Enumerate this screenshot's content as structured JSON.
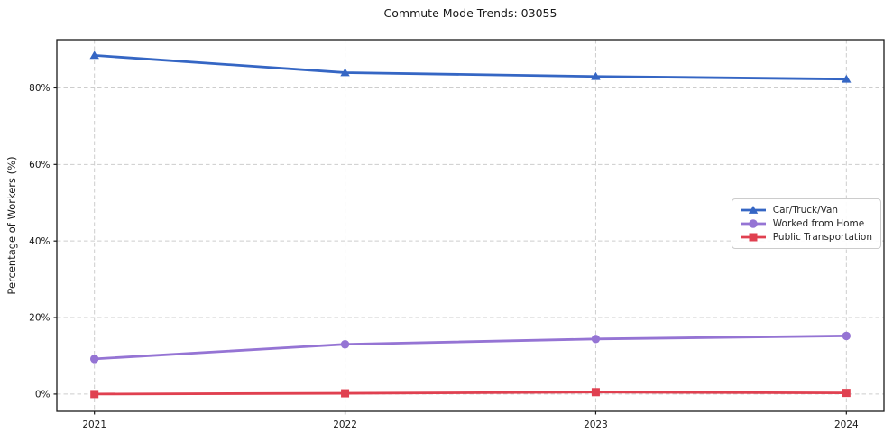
{
  "chart_data": {
    "type": "line",
    "title": "Commute Mode Trends: 03055",
    "xlabel": "",
    "ylabel": "Percentage of Workers (%)",
    "x": [
      2021,
      2022,
      2023,
      2024
    ],
    "x_tick_labels": [
      "2021",
      "2022",
      "2023",
      "2024"
    ],
    "series": [
      {
        "name": "Car/Truck/Van",
        "color": "#3566c4",
        "marker": "triangle",
        "values": [
          88.5,
          84.0,
          83.0,
          82.3
        ]
      },
      {
        "name": "Worked from Home",
        "color": "#9574d4",
        "marker": "circle",
        "values": [
          9.2,
          13.0,
          14.4,
          15.2
        ]
      },
      {
        "name": "Public Transportation",
        "color": "#e04050",
        "marker": "square",
        "values": [
          0.0,
          0.2,
          0.5,
          0.3
        ]
      }
    ],
    "yticks": [
      {
        "value": 0,
        "label": "0%"
      },
      {
        "value": 20,
        "label": "20%"
      },
      {
        "value": 40,
        "label": "40%"
      },
      {
        "value": 60,
        "label": "60%"
      },
      {
        "value": 80,
        "label": "80%"
      }
    ],
    "xlim": [
      2020.85,
      2024.15
    ],
    "ylim": [
      -4.5,
      92.6
    ],
    "grid": {
      "on": true,
      "style": "dashed",
      "color": "#cdcdcd"
    },
    "legend": {
      "position": "center-right",
      "border_color": "#cccccc",
      "background": "#ffffff"
    },
    "spine_color": "#1a1a1a",
    "text_color": "#1a1a1a"
  }
}
